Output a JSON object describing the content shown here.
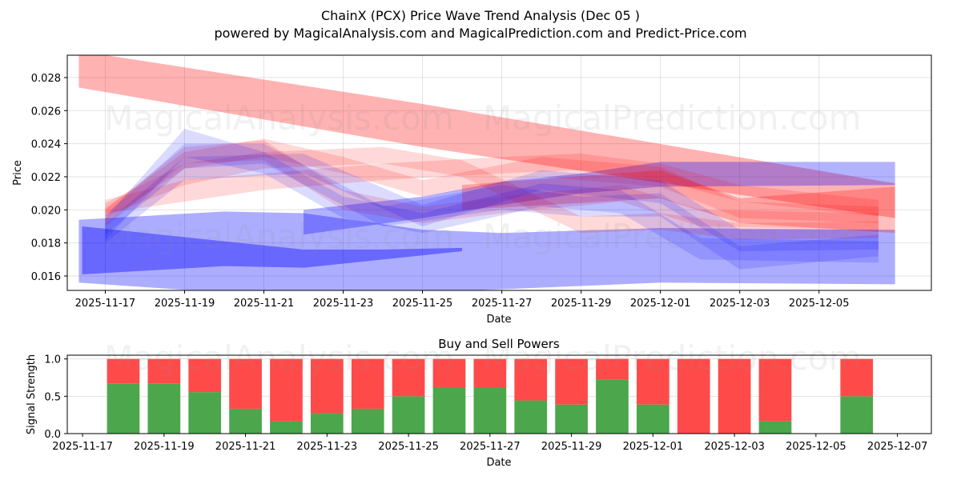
{
  "chart_data": [
    {
      "type": "area",
      "title": "ChainX (PCX) Price Wave Trend Analysis (Dec 05 )",
      "subtitle": "powered by MagicalAnalysis.com and MagicalPrediction.com and Predict-Price.com",
      "xlabel": "Date",
      "ylabel": "Price",
      "ylim": [
        0.01513,
        0.02935
      ],
      "xlim": [
        "2025-11-16T01:00",
        "2025-12-07T20:00"
      ],
      "grid": true,
      "x_ticks": [
        "2025-11-17",
        "2025-11-19",
        "2025-11-21",
        "2025-11-23",
        "2025-11-25",
        "2025-11-27",
        "2025-11-29",
        "2025-12-01",
        "2025-12-03",
        "2025-12-05"
      ],
      "y_ticks": [
        "0.016",
        "0.018",
        "0.020",
        "0.022",
        "0.024",
        "0.026",
        "0.028"
      ],
      "watermarks": [
        "MagicalAnalysis.com",
        "MagicalPrediction.com"
      ],
      "colors": {
        "red": "#ff0000",
        "blue": "#0000ff"
      },
      "bands": [
        {
          "color": "red",
          "alpha": 0.3,
          "points": [
            [
              "2025-11-16T08:00",
              0.0274,
              0.0296
            ],
            [
              "2025-11-25T00:00",
              0.0238,
              0.0264
            ],
            [
              "2025-12-06T22:00",
              0.0195,
              0.0216
            ]
          ]
        },
        {
          "color": "blue",
          "alpha": 0.32,
          "points": [
            [
              "2025-11-16T08:00",
              0.0156,
              0.0194
            ],
            [
              "2025-11-20T00:00",
              0.015,
              0.0199
            ],
            [
              "2025-11-22T00:00",
              0.0149,
              0.0198
            ],
            [
              "2025-11-25T00:00",
              0.015,
              0.0188
            ],
            [
              "2025-11-27T00:00",
              0.0152,
              0.0186
            ],
            [
              "2025-12-01T00:00",
              0.0156,
              0.0189
            ],
            [
              "2025-12-06T22:00",
              0.0155,
              0.0188
            ]
          ]
        },
        {
          "color": "blue",
          "alpha": 0.4,
          "points": [
            [
              "2025-11-16T10:00",
              0.0161,
              0.019
            ],
            [
              "2025-11-20T00:00",
              0.0166,
              0.0181
            ],
            [
              "2025-11-22T00:00",
              0.0165,
              0.0176
            ],
            [
              "2025-11-24T00:00",
              0.017,
              0.0176
            ],
            [
              "2025-11-26T00:00",
              0.0175,
              0.0177
            ]
          ]
        },
        {
          "color": "blue",
          "alpha": 0.3,
          "points": [
            [
              "2025-11-22T00:00",
              0.0185,
              0.02
            ],
            [
              "2025-11-25T00:00",
              0.0195,
              0.0208
            ],
            [
              "2025-11-27T00:00",
              0.0203,
              0.0217
            ],
            [
              "2025-11-29T00:00",
              0.021,
              0.0222
            ],
            [
              "2025-12-01T00:00",
              0.0214,
              0.0229
            ],
            [
              "2025-12-06T22:00",
              0.0215,
              0.0229
            ]
          ]
        },
        {
          "color": "red",
          "alpha": 0.25,
          "points": [
            [
              "2025-11-26T00:00",
              0.02,
              0.0215
            ],
            [
              "2025-12-01T00:00",
              0.0207,
              0.0224
            ],
            [
              "2025-12-03T00:00",
              0.0192,
              0.0207
            ],
            [
              "2025-12-06T22:00",
              0.0186,
              0.0214
            ]
          ]
        },
        {
          "color": "red",
          "alpha": 0.15,
          "points": [
            [
              "2025-11-17T00:00",
              0.0193,
              0.0201
            ],
            [
              "2025-11-19T00:00",
              0.0225,
              0.0235
            ],
            [
              "2025-11-21T00:00",
              0.0232,
              0.0243
            ],
            [
              "2025-11-23T00:00",
              0.0222,
              0.0232
            ],
            [
              "2025-11-25T00:00",
              0.0208,
              0.0218
            ],
            [
              "2025-11-28T00:00",
              0.022,
              0.0232
            ],
            [
              "2025-12-01T00:00",
              0.0214,
              0.0226
            ],
            [
              "2025-12-03T00:00",
              0.0195,
              0.0205
            ],
            [
              "2025-12-06T12:00",
              0.0192,
              0.0202
            ]
          ]
        },
        {
          "color": "red",
          "alpha": 0.15,
          "points": [
            [
              "2025-11-17T00:00",
              0.0196,
              0.0204
            ],
            [
              "2025-11-19T00:00",
              0.0215,
              0.0228
            ],
            [
              "2025-11-21T00:00",
              0.0225,
              0.0235
            ],
            [
              "2025-11-24T00:00",
              0.0228,
              0.0238
            ],
            [
              "2025-11-26T00:00",
              0.022,
              0.023
            ],
            [
              "2025-11-29T00:00",
              0.0186,
              0.0196
            ],
            [
              "2025-12-01T00:00",
              0.0188,
              0.0198
            ],
            [
              "2025-12-03T00:00",
              0.0182,
              0.0192
            ],
            [
              "2025-12-06T12:00",
              0.0183,
              0.0193
            ]
          ]
        },
        {
          "color": "red",
          "alpha": 0.15,
          "points": [
            [
              "2025-11-17T00:00",
              0.0198,
              0.0206
            ],
            [
              "2025-11-19T00:00",
              0.0205,
              0.0218
            ],
            [
              "2025-11-21T00:00",
              0.0212,
              0.0222
            ],
            [
              "2025-11-24T00:00",
              0.0218,
              0.0228
            ],
            [
              "2025-11-27T00:00",
              0.0222,
              0.0232
            ],
            [
              "2025-11-29T00:00",
              0.0224,
              0.0234
            ],
            [
              "2025-12-01T00:00",
              0.0218,
              0.0228
            ],
            [
              "2025-12-03T00:00",
              0.0205,
              0.0215
            ],
            [
              "2025-12-06T12:00",
              0.0196,
              0.0206
            ]
          ]
        },
        {
          "color": "red",
          "alpha": 0.15,
          "points": [
            [
              "2025-11-17T00:00",
              0.019,
              0.02
            ],
            [
              "2025-11-19T00:00",
              0.0228,
              0.0238
            ],
            [
              "2025-11-21T00:00",
              0.023,
              0.0242
            ],
            [
              "2025-11-23T00:00",
              0.02,
              0.0212
            ],
            [
              "2025-11-25T00:00",
              0.0192,
              0.0202
            ],
            [
              "2025-11-27T00:00",
              0.0198,
              0.0208
            ],
            [
              "2025-11-30T00:00",
              0.0205,
              0.0215
            ],
            [
              "2025-12-02T00:00",
              0.019,
              0.02
            ],
            [
              "2025-12-06T12:00",
              0.0188,
              0.0198
            ]
          ]
        },
        {
          "color": "blue",
          "alpha": 0.14,
          "points": [
            [
              "2025-11-17T00:00",
              0.0182,
              0.0195
            ],
            [
              "2025-11-19T00:00",
              0.0232,
              0.0249
            ],
            [
              "2025-11-21T00:00",
              0.0222,
              0.0235
            ],
            [
              "2025-11-23T00:00",
              0.0195,
              0.0208
            ],
            [
              "2025-11-25T00:00",
              0.0186,
              0.0198
            ],
            [
              "2025-11-28T00:00",
              0.0202,
              0.0216
            ],
            [
              "2025-11-30T00:00",
              0.0198,
              0.0212
            ],
            [
              "2025-12-02T00:00",
              0.017,
              0.0183
            ],
            [
              "2025-12-06T12:00",
              0.0168,
              0.0181
            ]
          ]
        },
        {
          "color": "blue",
          "alpha": 0.14,
          "points": [
            [
              "2025-11-17T00:00",
              0.0185,
              0.0197
            ],
            [
              "2025-11-19T00:00",
              0.0225,
              0.024
            ],
            [
              "2025-11-21T00:00",
              0.0228,
              0.024
            ],
            [
              "2025-11-24T00:00",
              0.019,
              0.0202
            ],
            [
              "2025-11-27T00:00",
              0.02,
              0.0215
            ],
            [
              "2025-11-29T00:00",
              0.0196,
              0.0208
            ],
            [
              "2025-12-01T00:00",
              0.0196,
              0.021
            ],
            [
              "2025-12-03T00:00",
              0.0164,
              0.0178
            ],
            [
              "2025-12-06T12:00",
              0.0172,
              0.0185
            ]
          ]
        },
        {
          "color": "blue",
          "alpha": 0.14,
          "points": [
            [
              "2025-11-17T00:00",
              0.018,
              0.0192
            ],
            [
              "2025-11-19T00:00",
              0.0218,
              0.0232
            ],
            [
              "2025-11-22T00:00",
              0.0222,
              0.0234
            ],
            [
              "2025-11-25T00:00",
              0.019,
              0.0203
            ],
            [
              "2025-11-28T00:00",
              0.0212,
              0.0224
            ],
            [
              "2025-12-01T00:00",
              0.0204,
              0.0218
            ],
            [
              "2025-12-03T00:00",
              0.0175,
              0.0188
            ],
            [
              "2025-12-06T12:00",
              0.0176,
              0.0188
            ]
          ]
        }
      ]
    },
    {
      "type": "bar",
      "title": "Buy and Sell Powers",
      "xlabel": "Date",
      "ylabel": "Signal Strength",
      "ylim": [
        0,
        1.05
      ],
      "xlim": [
        "2025-11-16T15:00",
        "2025-12-07T20:00"
      ],
      "x_ticks": [
        "2025-11-17",
        "2025-11-19",
        "2025-11-21",
        "2025-11-23",
        "2025-11-25",
        "2025-11-27",
        "2025-11-29",
        "2025-12-01",
        "2025-12-03",
        "2025-12-05",
        "2025-12-07"
      ],
      "y_ticks": [
        "0.0",
        "0.5",
        "1.0"
      ],
      "colors": {
        "buy": "#4ca64c",
        "sell": "#ff4a4a"
      },
      "categories": [
        "2025-11-18",
        "2025-11-19",
        "2025-11-20",
        "2025-11-21",
        "2025-11-22",
        "2025-11-23",
        "2025-11-24",
        "2025-11-25",
        "2025-11-26",
        "2025-11-27",
        "2025-11-28",
        "2025-11-29",
        "2025-11-30",
        "2025-12-01",
        "2025-12-02",
        "2025-12-03",
        "2025-12-04",
        "2025-12-06"
      ],
      "series": [
        {
          "name": "Buy",
          "values": [
            0.667,
            0.667,
            0.556,
            0.333,
            0.167,
            0.278,
            0.333,
            0.5,
            0.611,
            0.611,
            0.444,
            0.389,
            0.722,
            0.389,
            0,
            0,
            0.167,
            0.5
          ]
        },
        {
          "name": "Sell",
          "values": [
            0.333,
            0.333,
            0.444,
            0.667,
            0.833,
            0.722,
            0.667,
            0.5,
            0.389,
            0.389,
            0.556,
            0.611,
            0.278,
            0.611,
            1,
            1,
            0.833,
            0.5
          ]
        }
      ]
    }
  ]
}
